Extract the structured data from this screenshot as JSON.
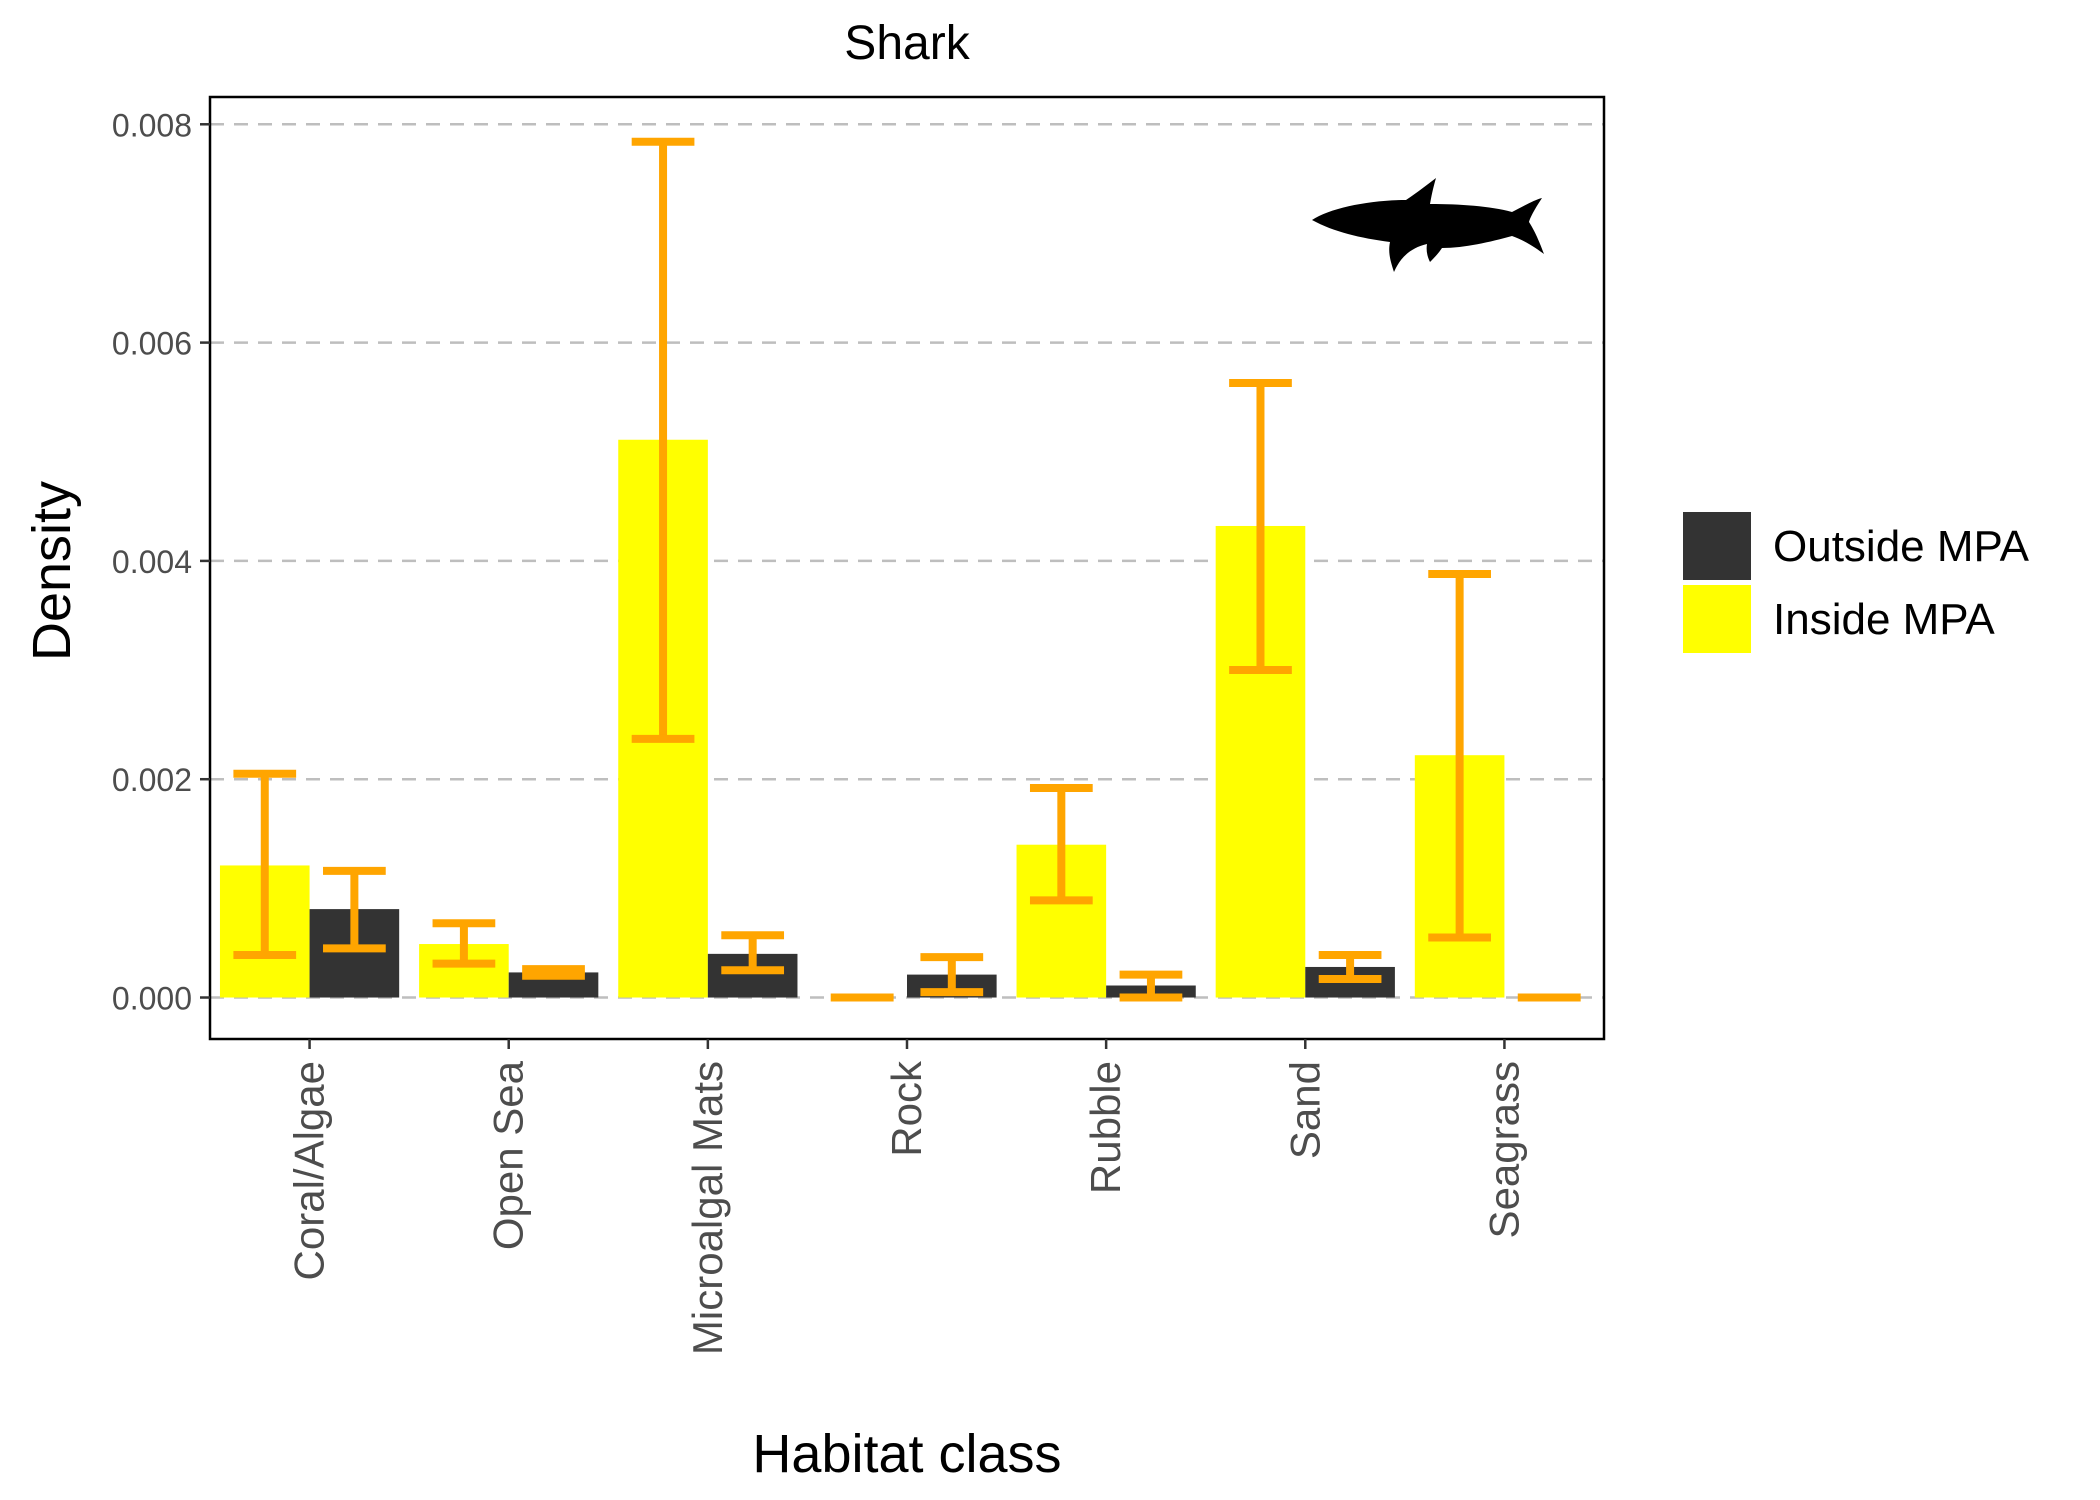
{
  "chart_data": {
    "type": "bar",
    "title": "Shark",
    "xlabel": "Habitat class",
    "ylabel": "Density",
    "ylim": [
      -0.00038,
      0.00825
    ],
    "yticks": [
      0.0,
      0.002,
      0.004,
      0.006,
      0.008
    ],
    "ytick_labels": [
      "0.000",
      "0.002",
      "0.004",
      "0.006",
      "0.008"
    ],
    "grid": "horizontal dashed gridlines",
    "legend_position": "right",
    "categories": [
      "Coral/Algae",
      "Open Sea",
      "Microalgal Mats",
      "Rock",
      "Rubble",
      "Sand",
      "Seagrass"
    ],
    "series": [
      {
        "name": "Outside MPA",
        "color": "#333333",
        "values": [
          0.00081,
          0.00023,
          0.0004,
          0.00021,
          0.00011,
          0.00028,
          0.0
        ],
        "error_low": [
          0.00045,
          0.0002,
          0.00025,
          5e-05,
          0.0,
          0.00017,
          0.0
        ],
        "error_high": [
          0.00116,
          0.00026,
          0.00057,
          0.00037,
          0.00021,
          0.00039,
          0.0
        ]
      },
      {
        "name": "Inside MPA",
        "color": "#FFFF00",
        "values": [
          0.00121,
          0.00049,
          0.00511,
          0.0,
          0.0014,
          0.00432,
          0.00222
        ],
        "error_low": [
          0.00039,
          0.00031,
          0.00237,
          0.0,
          0.00089,
          0.003,
          0.00055
        ],
        "error_high": [
          0.00205,
          0.00068,
          0.00784,
          0.0,
          0.00192,
          0.00563,
          0.00388
        ]
      }
    ],
    "error_bar_color": "#FFA500",
    "panel_border_color": "#000000",
    "grid_color": "#BEBEBE",
    "icon": "shark-silhouette-icon"
  }
}
